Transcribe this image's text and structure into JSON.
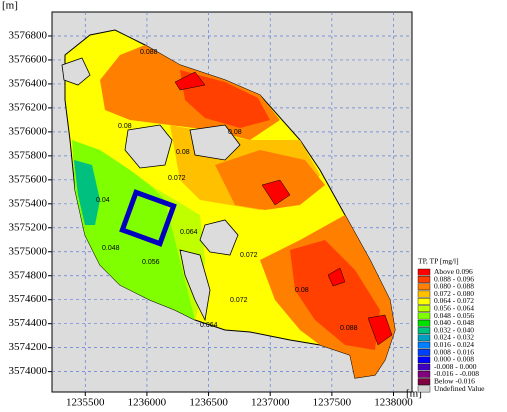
{
  "chart_data": {
    "type": "contour-map",
    "x_unit": "[m]",
    "y_unit": "[m]",
    "xlim": [
      1235230,
      1238150
    ],
    "ylim": [
      3573830,
      3577000
    ],
    "xticks": [
      1235500,
      1236000,
      1236500,
      1237000,
      1237500,
      1238000
    ],
    "yticks": [
      3574000,
      3574200,
      3574400,
      3574600,
      3574800,
      3575000,
      3575200,
      3575400,
      3575600,
      3575800,
      3576000,
      3576200,
      3576400,
      3576600,
      3576800
    ],
    "grid": true,
    "legend": {
      "title": "TP, TP [mg/l]",
      "items": [
        {
          "label": "Above 0.096",
          "color": "#ff0000"
        },
        {
          "label": "0.088 - 0.096",
          "color": "#ff4000"
        },
        {
          "label": "0.080 - 0.088",
          "color": "#ff8000"
        },
        {
          "label": "0.072 - 0.080",
          "color": "#ffc000"
        },
        {
          "label": "0.064 - 0.072",
          "color": "#ffff00"
        },
        {
          "label": "0.056 - 0.064",
          "color": "#c0ff00"
        },
        {
          "label": "0.048 - 0.056",
          "color": "#80ff00"
        },
        {
          "label": "0.040 - 0.048",
          "color": "#00e000"
        },
        {
          "label": "0.032 - 0.040",
          "color": "#00c080"
        },
        {
          "label": "0.024 - 0.032",
          "color": "#00a0c0"
        },
        {
          "label": "0.016 - 0.024",
          "color": "#0080ff"
        },
        {
          "label": "0.008 - 0.016",
          "color": "#0040ff"
        },
        {
          "label": "0.000 - 0.008",
          "color": "#0000ff"
        },
        {
          "label": "-0.008 - 0.000",
          "color": "#4000c0"
        },
        {
          "label": "-0.016 - -0.008",
          "color": "#800080"
        },
        {
          "label": "Below -0.016",
          "color": "#800040"
        },
        {
          "label": "Undefined Value",
          "color": "#d3d3d3"
        }
      ]
    },
    "contour_labels": [
      "0.088",
      "0.08",
      "0.08",
      "0.072",
      "0.064",
      "0.056",
      "0.048",
      "0.04",
      "0.08",
      "0.072",
      "0.064",
      "0.072",
      "0.08",
      "0.088"
    ]
  }
}
